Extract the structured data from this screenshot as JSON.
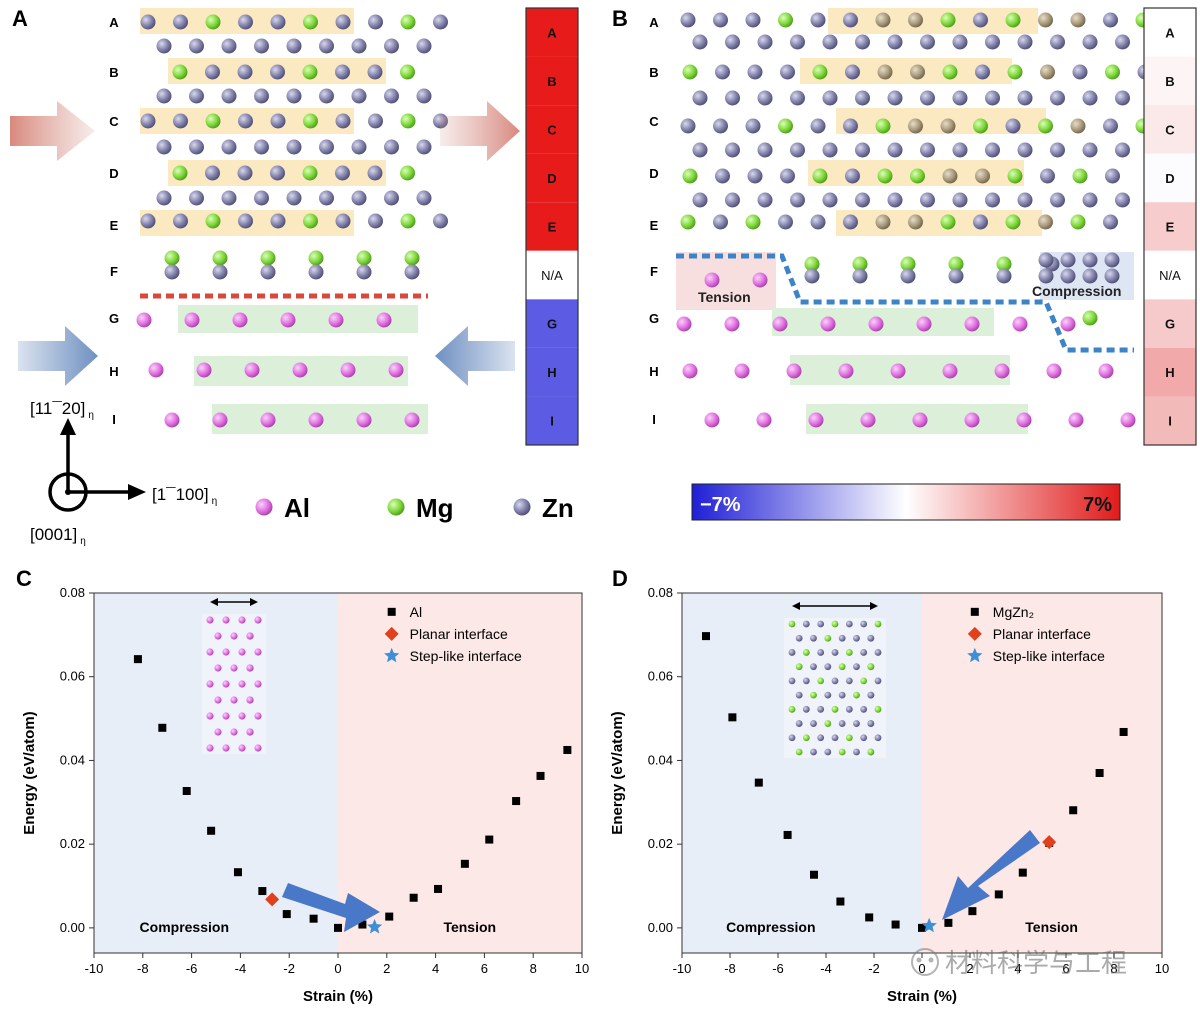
{
  "panels": {
    "A": {
      "letter": "A",
      "layers": [
        "A",
        "B",
        "C",
        "D",
        "E",
        "F",
        "G",
        "H",
        "I"
      ],
      "strain_bar": [
        "A",
        "B",
        "C",
        "D",
        "E",
        "N/A",
        "G",
        "H",
        "I"
      ],
      "axis_up": "[11¯20]",
      "axis_up_sub": "η",
      "axis_right": "[1¯100]",
      "axis_right_sub": "η",
      "axis_out": "[0001]",
      "axis_out_sub": "η"
    },
    "B": {
      "letter": "B",
      "layers": [
        "A",
        "B",
        "C",
        "D",
        "E",
        "F",
        "G",
        "H",
        "I"
      ],
      "strain_bar": [
        "A",
        "B",
        "C",
        "D",
        "E",
        "N/A",
        "G",
        "H",
        "I"
      ],
      "tension_label": "Tension",
      "compression_label": "Compression"
    }
  },
  "legend_atoms": [
    {
      "element": "Al",
      "color": "#e070e0"
    },
    {
      "element": "Mg",
      "color": "#7fd63a"
    },
    {
      "element": "Zn",
      "color": "#7f7fa8"
    }
  ],
  "colorbar": {
    "min_label": "−7%",
    "max_label": "7%",
    "colors": [
      "#1f1fd6",
      "#ffffff",
      "#e01b1b"
    ]
  },
  "chart_data": [
    {
      "panel": "C",
      "type": "scatter",
      "xlabel": "Strain (%)",
      "ylabel": "Energy (eV/atom)",
      "xlim": [
        -10,
        10
      ],
      "ylim": [
        -0.006,
        0.08
      ],
      "xticks": [
        -10,
        -8,
        -6,
        -4,
        -2,
        0,
        2,
        4,
        6,
        8,
        10
      ],
      "yticks": [
        0.0,
        0.02,
        0.04,
        0.06,
        0.08
      ],
      "region_labels": {
        "left": "Compression",
        "right": "Tension"
      },
      "series": [
        {
          "name": "Al",
          "marker": "square",
          "color": "#000000",
          "points": [
            [
              -8.2,
              0.0642
            ],
            [
              -7.2,
              0.0478
            ],
            [
              -6.2,
              0.0327
            ],
            [
              -5.2,
              0.0232
            ],
            [
              -4.1,
              0.0133
            ],
            [
              -3.1,
              0.0088
            ],
            [
              -2.1,
              0.0033
            ],
            [
              -1.0,
              0.0022
            ],
            [
              0.0,
              0.0
            ],
            [
              1.0,
              0.0008
            ],
            [
              2.1,
              0.0027
            ],
            [
              3.1,
              0.0072
            ],
            [
              4.1,
              0.0093
            ],
            [
              5.2,
              0.0153
            ],
            [
              6.2,
              0.0211
            ],
            [
              7.3,
              0.0303
            ],
            [
              8.3,
              0.0363
            ],
            [
              9.4,
              0.0425
            ]
          ]
        },
        {
          "name": "Planar interface",
          "marker": "diamond",
          "color": "#e0401b",
          "points": [
            [
              -2.7,
              0.0068
            ]
          ]
        },
        {
          "name": "Step-like interface",
          "marker": "star",
          "color": "#3d8fd6",
          "points": [
            [
              1.5,
              0.0002
            ]
          ]
        }
      ]
    },
    {
      "panel": "D",
      "type": "scatter",
      "xlabel": "Strain (%)",
      "ylabel": "Energy (eV/atom)",
      "xlim": [
        -10,
        10
      ],
      "ylim": [
        -0.006,
        0.08
      ],
      "xticks": [
        -10,
        -8,
        -6,
        -4,
        -2,
        0,
        2,
        4,
        6,
        8,
        10
      ],
      "yticks": [
        0.0,
        0.02,
        0.04,
        0.06,
        0.08
      ],
      "region_labels": {
        "left": "Compression",
        "right": "Tension"
      },
      "series": [
        {
          "name": "MgZn₂",
          "marker": "square",
          "color": "#000000",
          "points": [
            [
              -9.0,
              0.0697
            ],
            [
              -7.9,
              0.0503
            ],
            [
              -6.8,
              0.0347
            ],
            [
              -5.6,
              0.0222
            ],
            [
              -4.5,
              0.0127
            ],
            [
              -3.4,
              0.0063
            ],
            [
              -2.2,
              0.0025
            ],
            [
              -1.1,
              0.0008
            ],
            [
              0.0,
              0.0
            ],
            [
              1.1,
              0.0012
            ],
            [
              2.1,
              0.004
            ],
            [
              3.2,
              0.008
            ],
            [
              4.2,
              0.0132
            ],
            [
              5.3,
              0.0203
            ],
            [
              6.3,
              0.0281
            ],
            [
              7.4,
              0.037
            ],
            [
              8.4,
              0.0468
            ]
          ]
        },
        {
          "name": "Planar interface",
          "marker": "diamond",
          "color": "#e0401b",
          "points": [
            [
              5.3,
              0.0205
            ]
          ]
        },
        {
          "name": "Step-like interface",
          "marker": "star",
          "color": "#3d8fd6",
          "points": [
            [
              0.3,
              0.0005
            ]
          ]
        }
      ]
    }
  ],
  "watermark": "材料科学与工程"
}
